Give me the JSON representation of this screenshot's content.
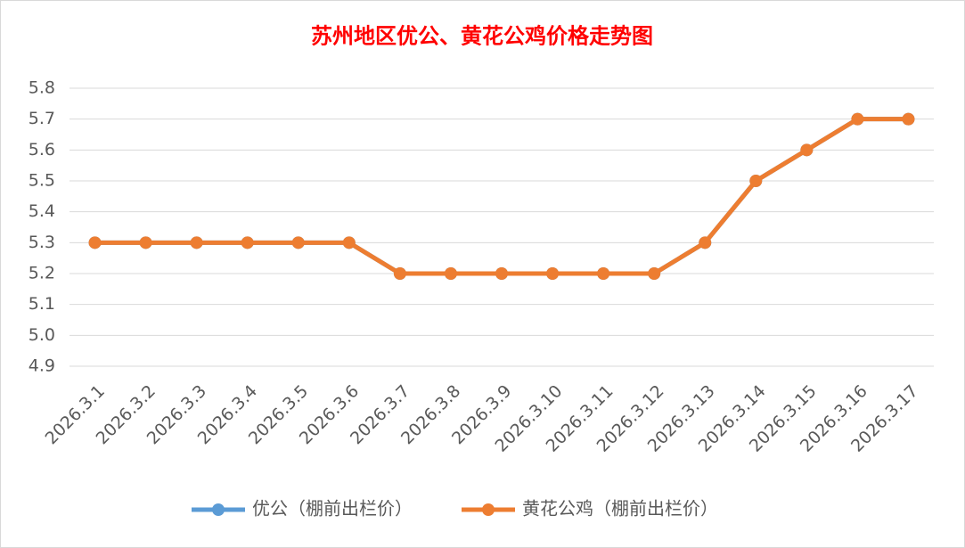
{
  "chart_data": {
    "type": "line",
    "title": "苏州地区优公、黄花公鸡价格走势图",
    "title_color": "#ff0000",
    "categories": [
      "2026.3.1",
      "2026.3.2",
      "2026.3.3",
      "2026.3.4",
      "2026.3.5",
      "2026.3.6",
      "2026.3.7",
      "2026.3.8",
      "2026.3.9",
      "2026.3.10",
      "2026.3.11",
      "2026.3.12",
      "2026.3.13",
      "2026.3.14",
      "2026.3.15",
      "2026.3.16",
      "2026.3.17"
    ],
    "series": [
      {
        "name": "优公（棚前出栏价）",
        "color": "#5b9bd5",
        "values": [
          5.3,
          5.3,
          5.3,
          5.3,
          5.3,
          5.3,
          5.2,
          5.2,
          5.2,
          5.2,
          5.2,
          5.2,
          5.3,
          5.5,
          5.6,
          5.7,
          5.7
        ]
      },
      {
        "name": "黄花公鸡（棚前出栏价）",
        "color": "#ed7d31",
        "values": [
          5.3,
          5.3,
          5.3,
          5.3,
          5.3,
          5.3,
          5.2,
          5.2,
          5.2,
          5.2,
          5.2,
          5.2,
          5.3,
          5.5,
          5.6,
          5.7,
          5.7
        ]
      }
    ],
    "ylim": [
      4.9,
      5.8
    ],
    "yticks": [
      4.9,
      {
        "value": 5,
        "label": "5.0"
      },
      5.1,
      5.2,
      5.3,
      5.4,
      5.5,
      5.6,
      5.7,
      5.8
    ],
    "grid": true,
    "legend": "bottom"
  }
}
